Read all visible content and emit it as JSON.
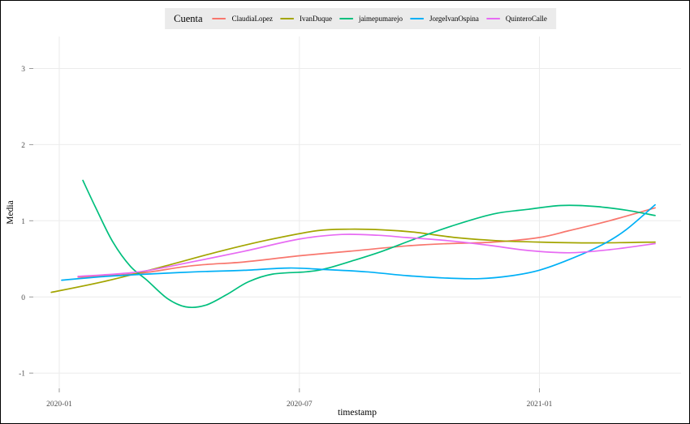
{
  "colors": {
    "background": "#ffffff",
    "frame_border": "#000000",
    "grid": "#ebebeb",
    "tick_mark": "#999999",
    "tick_text": "#4d4d4d",
    "legend_background": "#ebebeb",
    "text": "#000000"
  },
  "legend": {
    "title": "Cuenta",
    "position": "top"
  },
  "chart_data": {
    "type": "line",
    "title": "",
    "xlabel": "timestamp",
    "ylabel": "Media",
    "x_unit": "months since 2020-01",
    "xlim": [
      -0.65,
      15.54
    ],
    "ylim": [
      -1.2,
      3.42
    ],
    "grid": "major-only",
    "legend_position": "top",
    "x_ticks": [
      {
        "x": 0,
        "label": "2020-01"
      },
      {
        "x": 6,
        "label": "2020-07"
      },
      {
        "x": 12,
        "label": "2021-01"
      }
    ],
    "y_ticks": [
      {
        "y": -1,
        "label": "-1"
      },
      {
        "y": 0,
        "label": "0"
      },
      {
        "y": 1,
        "label": "1"
      },
      {
        "y": 2,
        "label": "2"
      },
      {
        "y": 3,
        "label": "3"
      }
    ],
    "series": [
      {
        "name": "ClaudiaLopez",
        "color": "#F8766D",
        "points": [
          [
            0.47,
            0.26
          ],
          [
            1.99,
            0.31
          ],
          [
            3.31,
            0.41
          ],
          [
            4.62,
            0.46
          ],
          [
            6.0,
            0.54
          ],
          [
            7.26,
            0.6
          ],
          [
            8.68,
            0.67
          ],
          [
            9.7,
            0.7
          ],
          [
            10.85,
            0.72
          ],
          [
            11.99,
            0.78
          ],
          [
            12.74,
            0.87
          ],
          [
            13.75,
            1.0
          ],
          [
            14.89,
            1.17
          ]
        ]
      },
      {
        "name": "IvanDuque",
        "color": "#A3A500",
        "points": [
          [
            -0.2,
            0.06
          ],
          [
            1.18,
            0.21
          ],
          [
            2.6,
            0.4
          ],
          [
            4.02,
            0.6
          ],
          [
            5.23,
            0.75
          ],
          [
            6.45,
            0.87
          ],
          [
            7.26,
            0.89
          ],
          [
            8.11,
            0.88
          ],
          [
            8.88,
            0.85
          ],
          [
            9.9,
            0.78
          ],
          [
            10.91,
            0.74
          ],
          [
            11.99,
            0.72
          ],
          [
            13.35,
            0.71
          ],
          [
            14.89,
            0.72
          ]
        ]
      },
      {
        "name": "jaimepumarejo",
        "color": "#00BF7D",
        "points": [
          [
            0.59,
            1.53
          ],
          [
            0.93,
            1.15
          ],
          [
            1.34,
            0.72
          ],
          [
            1.78,
            0.4
          ],
          [
            2.19,
            0.22
          ],
          [
            2.7,
            -0.02
          ],
          [
            3.16,
            -0.13
          ],
          [
            3.65,
            -0.11
          ],
          [
            4.18,
            0.03
          ],
          [
            4.73,
            0.2
          ],
          [
            5.33,
            0.3
          ],
          [
            6.16,
            0.33
          ],
          [
            6.65,
            0.37
          ],
          [
            7.36,
            0.48
          ],
          [
            8.07,
            0.6
          ],
          [
            8.88,
            0.76
          ],
          [
            9.8,
            0.93
          ],
          [
            10.85,
            1.09
          ],
          [
            11.72,
            1.15
          ],
          [
            12.53,
            1.2
          ],
          [
            13.35,
            1.19
          ],
          [
            14.16,
            1.14
          ],
          [
            14.89,
            1.07
          ]
        ]
      },
      {
        "name": "JorgeIvanOspina",
        "color": "#00B0F6",
        "points": [
          [
            0.06,
            0.22
          ],
          [
            1.18,
            0.27
          ],
          [
            2.19,
            0.3
          ],
          [
            3.41,
            0.33
          ],
          [
            4.62,
            0.35
          ],
          [
            5.74,
            0.38
          ],
          [
            6.65,
            0.36
          ],
          [
            7.67,
            0.33
          ],
          [
            8.68,
            0.28
          ],
          [
            9.59,
            0.25
          ],
          [
            10.51,
            0.24
          ],
          [
            11.32,
            0.28
          ],
          [
            11.99,
            0.35
          ],
          [
            12.74,
            0.49
          ],
          [
            13.55,
            0.68
          ],
          [
            14.16,
            0.88
          ],
          [
            14.89,
            1.21
          ]
        ]
      },
      {
        "name": "QuinteroCalle",
        "color": "#E76BF3",
        "points": [
          [
            0.47,
            0.27
          ],
          [
            1.99,
            0.33
          ],
          [
            3.31,
            0.46
          ],
          [
            4.62,
            0.6
          ],
          [
            6.0,
            0.76
          ],
          [
            7.06,
            0.82
          ],
          [
            7.97,
            0.81
          ],
          [
            8.68,
            0.78
          ],
          [
            9.7,
            0.74
          ],
          [
            10.71,
            0.68
          ],
          [
            11.72,
            0.61
          ],
          [
            12.74,
            0.58
          ],
          [
            13.75,
            0.62
          ],
          [
            14.89,
            0.7
          ]
        ]
      }
    ]
  }
}
